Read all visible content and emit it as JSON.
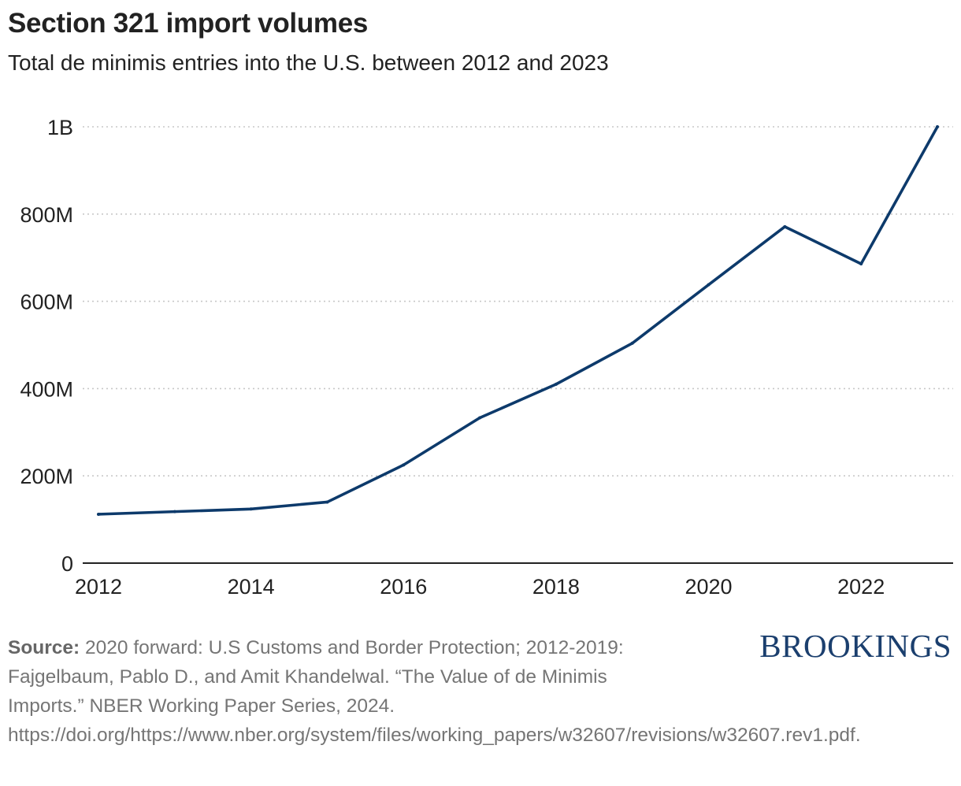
{
  "chart_data": {
    "type": "line",
    "title": "Section 321 import volumes",
    "subtitle": "Total de minimis entries into the U.S. between 2012 and 2023",
    "xlabel": "",
    "ylabel": "",
    "x": [
      2012,
      2013,
      2014,
      2015,
      2016,
      2017,
      2018,
      2019,
      2020,
      2021,
      2022,
      2023
    ],
    "series": [
      {
        "name": "De minimis entries",
        "color": "#0d3a6b",
        "values": [
          112000000,
          118000000,
          124000000,
          140000000,
          225000000,
          333000000,
          410000000,
          504000000,
          638000000,
          771000000,
          686000000,
          1000000000
        ]
      }
    ],
    "xticks": [
      2012,
      2014,
      2016,
      2018,
      2020,
      2022
    ],
    "xtick_labels": [
      "2012",
      "2014",
      "2016",
      "2018",
      "2020",
      "2022"
    ],
    "yticks": [
      0,
      200000000,
      400000000,
      600000000,
      800000000,
      1000000000
    ],
    "ytick_labels": [
      "0",
      "200M",
      "400M",
      "600M",
      "800M",
      "1B"
    ],
    "xlim": [
      2012,
      2023
    ],
    "ylim": [
      0,
      1000000000
    ],
    "grid": "horizontal-dotted",
    "legend": "none"
  },
  "source": {
    "label": "Source:",
    "text": "2020 forward: U.S Customs and Border Protection; 2012-2019: Fajgelbaum, Pablo  D., and Amit Khandelwal. “The Value of de Minimis Imports.” NBER Working Paper Series, 2024. https://doi.org/https://www.nber.org/system/files/working_papers/w32607/revisions/w32607.rev1.pdf."
  },
  "brand": "BROOKINGS"
}
